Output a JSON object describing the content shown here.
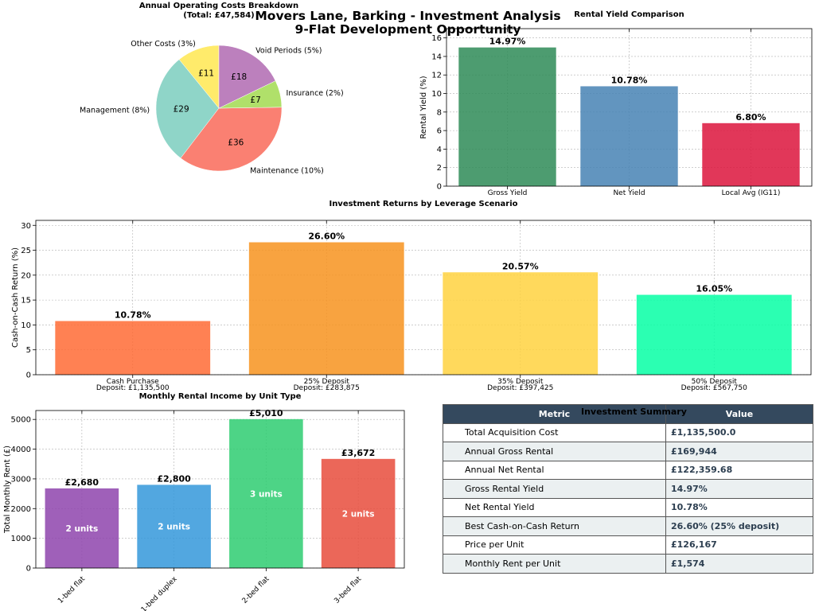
{
  "title": {
    "line1": "Movers Lane, Barking - Investment Analysis",
    "line2": "9-Flat Development Opportunity"
  },
  "chart_data": [
    {
      "id": "costs",
      "type": "pie",
      "title": "Annual Operating Costs Breakdown",
      "subtitle": "(Total: £47,584)",
      "slices": [
        {
          "label": "Other Costs (3%)",
          "value": 11,
          "display": "£11",
          "color": "#ffeb6b"
        },
        {
          "label": "Management (8%)",
          "value": 29,
          "display": "£29",
          "color": "#8fd5c8"
        },
        {
          "label": "Maintenance (10%)",
          "value": 36,
          "display": "£36",
          "color": "#fa8072"
        },
        {
          "label": "Insurance (2%)",
          "value": 7,
          "display": "£7",
          "color": "#b0e06a"
        },
        {
          "label": "Void Periods (5%)",
          "value": 18,
          "display": "£18",
          "color": "#bc80bd"
        }
      ]
    },
    {
      "id": "yield",
      "type": "bar",
      "title": "Rental Yield Comparison",
      "ylabel": "Rental Yield (%)",
      "ylim": [
        0,
        17
      ],
      "yticks": [
        0,
        2,
        4,
        6,
        8,
        10,
        12,
        14,
        16
      ],
      "categories": [
        "Gross Yield",
        "Net Yield",
        "Local Avg (IG11)"
      ],
      "values": [
        14.97,
        10.78,
        6.8
      ],
      "labels": [
        "14.97%",
        "10.78%",
        "6.80%"
      ],
      "colors": [
        "#2e8b57",
        "#4682b4",
        "#dc143c"
      ]
    },
    {
      "id": "leverage",
      "type": "bar",
      "title": "Investment Returns by Leverage Scenario",
      "ylabel": "Cash-on-Cash Return (%)",
      "ylim": [
        0,
        31
      ],
      "yticks": [
        0,
        5,
        10,
        15,
        20,
        25,
        30
      ],
      "categories": [
        "Cash Purchase",
        "25% Deposit",
        "35% Deposit",
        "50% Deposit"
      ],
      "sublabels": [
        "Deposit: £1,135,500",
        "Deposit: £283,875",
        "Deposit: £397,425",
        "Deposit: £567,750"
      ],
      "values": [
        10.78,
        26.6,
        20.57,
        16.05
      ],
      "labels": [
        "10.78%",
        "26.60%",
        "20.57%",
        "16.05%"
      ],
      "colors": [
        "#ff6b35",
        "#f7931e",
        "#ffd23f",
        "#06ffa5"
      ]
    },
    {
      "id": "units",
      "type": "bar",
      "title": "Monthly Rental Income by Unit Type",
      "ylabel": "Total Monthly Rent (£)",
      "ylim": [
        0,
        5300
      ],
      "yticks": [
        0,
        1000,
        2000,
        3000,
        4000,
        5000
      ],
      "categories": [
        "1-bed flat",
        "1-bed duplex",
        "2-bed flat",
        "3-bed flat"
      ],
      "values": [
        2680,
        2800,
        5010,
        3672
      ],
      "labels": [
        "£2,680",
        "£2,800",
        "£5,010",
        "£3,672"
      ],
      "inner_labels": [
        "2 units",
        "2 units",
        "3 units",
        "2 units"
      ],
      "colors": [
        "#8e44ad",
        "#3498db",
        "#2ecc71",
        "#e74c3c"
      ]
    }
  ],
  "summary": {
    "title": "Investment Summary",
    "headers": [
      "Metric",
      "Value"
    ],
    "rows": [
      {
        "metric": "Total Acquisition Cost",
        "value": "£1,135,500.0"
      },
      {
        "metric": "Annual Gross Rental",
        "value": "£169,944"
      },
      {
        "metric": "Annual Net Rental",
        "value": "£122,359.68"
      },
      {
        "metric": "Gross Rental Yield",
        "value": "14.97%"
      },
      {
        "metric": "Net Rental Yield",
        "value": "10.78%"
      },
      {
        "metric": "Best Cash-on-Cash Return",
        "value": "26.60% (25% deposit)"
      },
      {
        "metric": "Price per Unit",
        "value": "£126,167"
      },
      {
        "metric": "Monthly Rent per Unit",
        "value": "£1,574"
      }
    ]
  },
  "colors": {
    "header_bg": "#34495e",
    "alt_row": "#ebf0f1",
    "value_text": "#2c3e50"
  }
}
